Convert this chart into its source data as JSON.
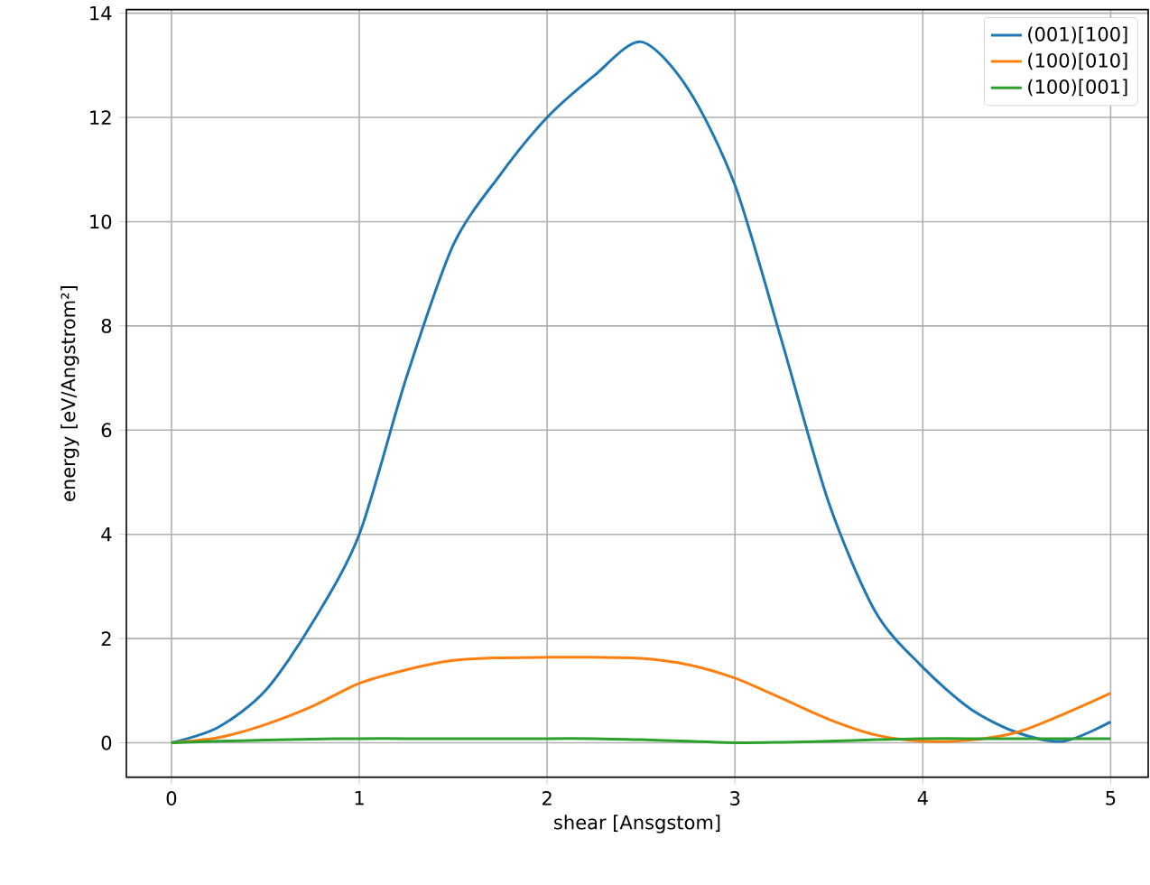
{
  "chart_data": {
    "type": "line",
    "xlabel": "shear [Ansgstom]",
    "ylabel": "energy [eV/Angstrom²]",
    "x": [
      0,
      0.25,
      0.5,
      0.75,
      1.0,
      1.25,
      1.5,
      1.75,
      2.0,
      2.25,
      2.5,
      2.75,
      3.0,
      3.25,
      3.5,
      3.75,
      4.0,
      4.25,
      4.5,
      4.75,
      5.0
    ],
    "series": [
      {
        "name": "(001)[100]",
        "color": "#1f77b4",
        "values": [
          0,
          0.3,
          1.0,
          2.3,
          4.0,
          7.0,
          9.55,
          10.9,
          12.0,
          12.8,
          13.45,
          12.55,
          10.7,
          7.7,
          4.6,
          2.5,
          1.45,
          0.66,
          0.2,
          0.03,
          0.4
        ]
      },
      {
        "name": "(100)[010]",
        "color": "#ff7f0e",
        "values": [
          0,
          0.1,
          0.35,
          0.7,
          1.14,
          1.4,
          1.58,
          1.63,
          1.64,
          1.64,
          1.62,
          1.5,
          1.24,
          0.85,
          0.45,
          0.15,
          0.03,
          0.05,
          0.2,
          0.55,
          0.95
        ]
      },
      {
        "name": "(100)[001]",
        "color": "#2ca02c",
        "values": [
          0,
          0.03,
          0.05,
          0.07,
          0.08,
          0.08,
          0.08,
          0.08,
          0.08,
          0.08,
          0.06,
          0.03,
          0.0,
          0.01,
          0.03,
          0.06,
          0.08,
          0.08,
          0.08,
          0.08,
          0.08
        ]
      }
    ],
    "xlim": [
      -0.24,
      5.2
    ],
    "ylim": [
      -0.66,
      14.07
    ],
    "xticks": [
      0,
      1,
      2,
      3,
      4,
      5
    ],
    "yticks": [
      0,
      2,
      4,
      6,
      8,
      10,
      12,
      14
    ],
    "grid": true,
    "legend": "top right",
    "marker": "none",
    "line_style": "solid"
  }
}
